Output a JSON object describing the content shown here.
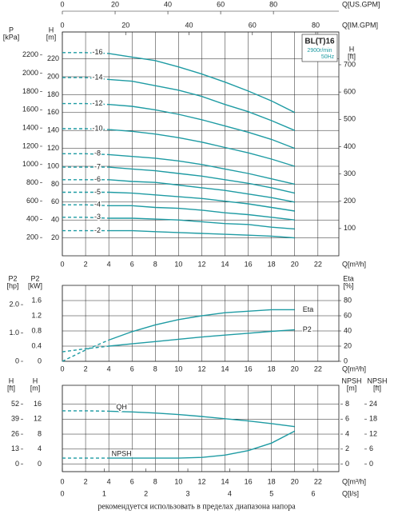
{
  "chart_data": [
    {
      "type": "line",
      "xlabel": "Q[m³/h]",
      "xlim": [
        0,
        23.8
      ],
      "xticks": [
        0,
        2,
        4,
        6,
        8,
        10,
        12,
        14,
        16,
        18,
        20,
        22
      ],
      "x": [
        0,
        2,
        4,
        6,
        8,
        10,
        12,
        14,
        16,
        18,
        20
      ],
      "grid": true,
      "dashed_x_max": 4,
      "x_axes": [
        {
          "label": "Q[US.GPM]",
          "lim": [
            0,
            104.8
          ],
          "ticks": [
            0,
            20,
            40,
            60,
            80
          ]
        },
        {
          "label": "Q[IM.GPM]",
          "lim": [
            0,
            87.3
          ],
          "ticks": [
            0,
            20,
            40,
            60,
            80
          ]
        }
      ],
      "y_axes": [
        {
          "title": "P",
          "unit": "[kPa]",
          "lim": [
            0,
            2452
          ],
          "ticks": [
            200,
            400,
            600,
            800,
            1000,
            1200,
            1400,
            1600,
            1800,
            2000,
            2200
          ]
        },
        {
          "title": "H",
          "unit": "[m]",
          "lim": [
            0,
            250
          ],
          "ticks": [
            20,
            40,
            60,
            80,
            100,
            120,
            140,
            160,
            180,
            200,
            220
          ],
          "grid": true
        },
        {
          "title": "H",
          "unit": "[ft]",
          "lim": [
            0,
            820
          ],
          "ticks": [
            100,
            200,
            300,
            400,
            500,
            600,
            700
          ]
        }
      ],
      "badge": {
        "model": "BL(T)16",
        "speed": "2900r/min",
        "freq": "50Hz"
      },
      "series": [
        {
          "name": "-16",
          "color": "#1e9ba3",
          "axis": 1,
          "values": [
            227,
            227,
            226,
            222,
            218,
            211,
            203,
            194,
            184,
            173,
            160
          ]
        },
        {
          "name": "-14",
          "color": "#1e9ba3",
          "axis": 1,
          "values": [
            199,
            199,
            197,
            195,
            190,
            185,
            178,
            169,
            161,
            151,
            140
          ]
        },
        {
          "name": "-12",
          "color": "#1e9ba3",
          "axis": 1,
          "values": [
            170,
            170,
            169,
            167,
            163,
            158,
            152,
            145,
            138,
            130,
            120
          ]
        },
        {
          "name": "-10",
          "color": "#1e9ba3",
          "axis": 1,
          "values": [
            142,
            142,
            141,
            139,
            136,
            132,
            127,
            121,
            115,
            108,
            100
          ]
        },
        {
          "name": "-8",
          "color": "#1e9ba3",
          "axis": 1,
          "values": [
            114,
            114,
            113,
            111,
            109,
            106,
            102,
            97,
            92,
            86,
            80
          ]
        },
        {
          "name": "-7",
          "color": "#1e9ba3",
          "axis": 1,
          "values": [
            99,
            99,
            99,
            97,
            95,
            92,
            89,
            85,
            81,
            76,
            70
          ]
        },
        {
          "name": "-6",
          "color": "#1e9ba3",
          "axis": 1,
          "values": [
            85,
            85,
            85,
            83,
            82,
            79,
            76,
            73,
            69,
            65,
            60
          ]
        },
        {
          "name": "-5",
          "color": "#1e9ba3",
          "axis": 1,
          "values": [
            71,
            71,
            71,
            70,
            68,
            66,
            64,
            61,
            58,
            54,
            50
          ]
        },
        {
          "name": "-4",
          "color": "#1e9ba3",
          "axis": 1,
          "values": [
            57,
            57,
            56,
            56,
            54,
            53,
            51,
            48,
            46,
            43,
            40
          ]
        },
        {
          "name": "-3",
          "color": "#1e9ba3",
          "axis": 1,
          "values": [
            43,
            43,
            42,
            42,
            41,
            40,
            38,
            36,
            35,
            32,
            30
          ]
        },
        {
          "name": "-2",
          "color": "#1e9ba3",
          "axis": 1,
          "values": [
            28,
            28,
            28,
            28,
            27,
            26,
            25,
            24,
            23,
            22,
            20
          ]
        }
      ]
    },
    {
      "type": "line",
      "xlabel": "Q[m³/h]",
      "xlim": [
        0,
        23.8
      ],
      "xticks": [
        0,
        2,
        4,
        6,
        8,
        10,
        12,
        14,
        16,
        18,
        20,
        22
      ],
      "x": [
        0,
        2,
        4,
        6,
        8,
        10,
        12,
        14,
        16,
        18,
        20
      ],
      "grid": true,
      "dashed_x_max": 4,
      "y_axes": [
        {
          "title": "P2",
          "unit": "[hp]",
          "lim": [
            0,
            2.68
          ],
          "ticks": [
            0,
            {
              "value": 1,
              "label": "1.0"
            },
            {
              "value": 2,
              "label": "2.0"
            }
          ]
        },
        {
          "title": "P2",
          "unit": "[kW]",
          "lim": [
            0,
            2
          ],
          "ticks": [
            0,
            0.4,
            0.8,
            1.2,
            1.6
          ],
          "grid": true
        },
        {
          "title": "Eta",
          "unit": "[%]",
          "lim": [
            0,
            100
          ],
          "ticks": [
            0,
            20,
            40,
            60,
            80
          ]
        }
      ],
      "series": [
        {
          "name": "Eta",
          "color": "#1e9ba3",
          "axis": 2,
          "values": [
            0,
            15,
            28,
            39,
            48,
            55,
            60,
            64,
            66,
            68,
            68
          ]
        },
        {
          "name": "P2",
          "color": "#1e9ba3",
          "axis": 1,
          "values": [
            0.25,
            0.33,
            0.4,
            0.46,
            0.52,
            0.58,
            0.64,
            0.69,
            0.74,
            0.79,
            0.83
          ]
        }
      ]
    },
    {
      "type": "line",
      "xlabel": "Q[m³/h]",
      "xlim": [
        0,
        23.8
      ],
      "xticks": [
        0,
        2,
        4,
        6,
        8,
        10,
        12,
        14,
        16,
        18,
        20,
        22
      ],
      "x": [
        0,
        2,
        4,
        6,
        8,
        10,
        12,
        14,
        16,
        18,
        20
      ],
      "grid": true,
      "dashed_x_max": 4,
      "x_axes": [
        {
          "label": "Q[l/s]",
          "lim": [
            0,
            6.61
          ],
          "ticks": [
            0,
            1,
            2,
            3,
            4,
            5,
            6
          ]
        }
      ],
      "y_axes": [
        {
          "title": "H",
          "unit": "[ft]",
          "lim": [
            -6.5,
            68.3
          ],
          "ticks": [
            0,
            13,
            26,
            39,
            52
          ]
        },
        {
          "title": "H",
          "unit": "[m]",
          "lim": [
            -2,
            21
          ],
          "ticks": [
            0,
            4,
            8,
            12,
            16
          ],
          "grid": true
        },
        {
          "title": "NPSH",
          "unit": "[m]",
          "lim": [
            -1,
            10.5
          ],
          "ticks": [
            0,
            2,
            4,
            6,
            8
          ]
        },
        {
          "title": "NPSH",
          "unit": "[ft]",
          "lim": [
            -3,
            31.5
          ],
          "ticks": [
            0,
            6,
            12,
            18,
            24
          ]
        }
      ],
      "series": [
        {
          "name": "QH",
          "color": "#1e9ba3",
          "axis": 1,
          "values": [
            14.2,
            14.2,
            14.1,
            13.9,
            13.6,
            13.2,
            12.7,
            12.1,
            11.5,
            10.8,
            10.0
          ]
        },
        {
          "name": "NPSH",
          "color": "#1e9ba3",
          "axis": 2,
          "values": [
            0.8,
            0.8,
            0.8,
            0.8,
            0.8,
            0.8,
            0.9,
            1.2,
            1.8,
            2.8,
            4.4
          ]
        }
      ]
    }
  ],
  "footer": "рекомендуется использовать в пределах диапазона напора"
}
